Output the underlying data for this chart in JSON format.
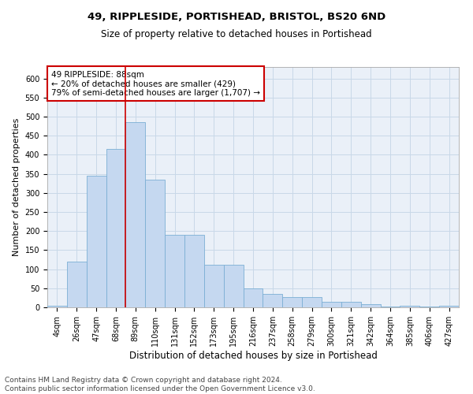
{
  "title": "49, RIPPLESIDE, PORTISHEAD, BRISTOL, BS20 6ND",
  "subtitle": "Size of property relative to detached houses in Portishead",
  "xlabel": "Distribution of detached houses by size in Portishead",
  "ylabel": "Number of detached properties",
  "categories": [
    "4sqm",
    "26sqm",
    "47sqm",
    "68sqm",
    "89sqm",
    "110sqm",
    "131sqm",
    "152sqm",
    "173sqm",
    "195sqm",
    "216sqm",
    "237sqm",
    "258sqm",
    "279sqm",
    "300sqm",
    "321sqm",
    "342sqm",
    "364sqm",
    "385sqm",
    "406sqm",
    "427sqm"
  ],
  "values": [
    5,
    120,
    345,
    415,
    485,
    335,
    190,
    190,
    112,
    112,
    50,
    35,
    27,
    27,
    15,
    15,
    8,
    2,
    5,
    2,
    5
  ],
  "bar_color": "#c5d8f0",
  "bar_edge_color": "#7bafd4",
  "highlight_line_color": "#cc0000",
  "annotation_text": "49 RIPPLESIDE: 88sqm\n← 20% of detached houses are smaller (429)\n79% of semi-detached houses are larger (1,707) →",
  "annotation_box_color": "#ffffff",
  "annotation_box_edge": "#cc0000",
  "ylim": [
    0,
    630
  ],
  "yticks": [
    0,
    50,
    100,
    150,
    200,
    250,
    300,
    350,
    400,
    450,
    500,
    550,
    600
  ],
  "grid_color": "#c8d8e8",
  "background_color": "#eaf0f8",
  "footer_line1": "Contains HM Land Registry data © Crown copyright and database right 2024.",
  "footer_line2": "Contains public sector information licensed under the Open Government Licence v3.0.",
  "title_fontsize": 9.5,
  "subtitle_fontsize": 8.5,
  "xlabel_fontsize": 8.5,
  "ylabel_fontsize": 8,
  "tick_fontsize": 7,
  "annotation_fontsize": 7.5,
  "footer_fontsize": 6.5
}
